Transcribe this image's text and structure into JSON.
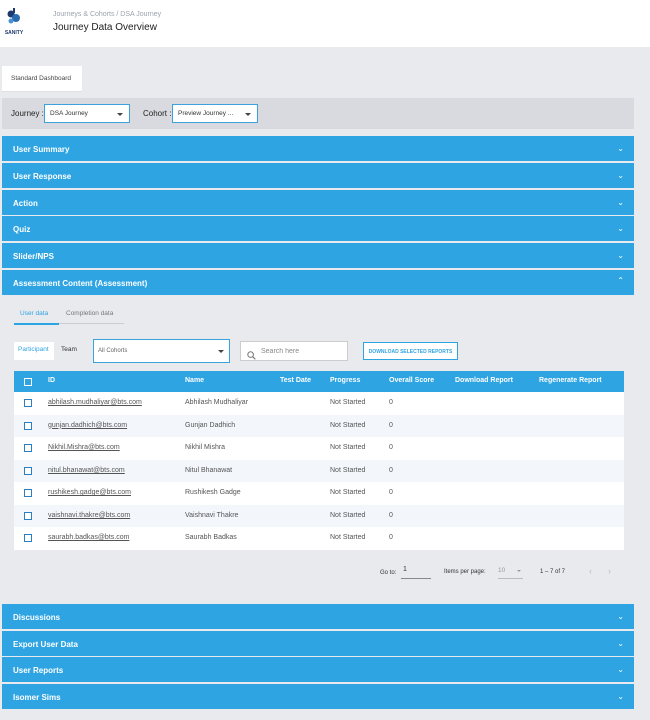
{
  "header": {
    "logo_text": "SANITY",
    "breadcrumb": "Journeys & Cohorts / DSA Journey",
    "title": "Journey Data Overview"
  },
  "dashboard_tab": "Standard Dashboard",
  "filters": {
    "journey_label": "Journey :",
    "journey_value": "DSA Journey",
    "cohort_label": "Cohort :",
    "cohort_value": "Preview Journey ..."
  },
  "sections_top": [
    {
      "label": "User Summary",
      "expanded": false
    },
    {
      "label": "User Response",
      "expanded": false
    },
    {
      "label": "Action",
      "expanded": false
    },
    {
      "label": "Quiz",
      "expanded": false
    },
    {
      "label": "Slider/NPS",
      "expanded": false
    },
    {
      "label": "Assessment Content (Assessment)",
      "expanded": true
    }
  ],
  "sections_bottom": [
    {
      "label": "Discussions"
    },
    {
      "label": "Export User Data"
    },
    {
      "label": "User Reports"
    },
    {
      "label": "Isomer Sims"
    }
  ],
  "assessment": {
    "subtabs": [
      "User data",
      "Completion data"
    ],
    "active_subtab": "User data",
    "toggle": [
      "Participant",
      "Team"
    ],
    "active_toggle": "Participant",
    "cohort_filter": "All Cohorts",
    "search_placeholder": "Search here",
    "download_button": "DOWNLOAD SELECTED REPORTS",
    "columns": [
      "ID",
      "Name",
      "Test Date",
      "Progress",
      "Overall Score",
      "Download Report",
      "Regenerate Report"
    ],
    "rows": [
      {
        "id": "abhilash.mudhaliyar@bts.com",
        "name": "Abhilash Mudhaliyar",
        "test_date": "",
        "progress": "Not Started",
        "score": "0"
      },
      {
        "id": "gunjan.dadhich@bts.com",
        "name": "Gunjan Dadhich",
        "test_date": "",
        "progress": "Not Started",
        "score": "0"
      },
      {
        "id": "Nikhil.Mishra@bts.com",
        "name": "Nikhil Mishra",
        "test_date": "",
        "progress": "Not Started",
        "score": "0"
      },
      {
        "id": "nitul.bhanawat@bts.com",
        "name": "Nitul Bhanawat",
        "test_date": "",
        "progress": "Not Started",
        "score": "0"
      },
      {
        "id": "rushikesh.gadge@bts.com",
        "name": "Rushikesh Gadge",
        "test_date": "",
        "progress": "Not Started",
        "score": "0"
      },
      {
        "id": "vaishnavi.thakre@bts.com",
        "name": "Vaishnavi Thakre",
        "test_date": "",
        "progress": "Not Started",
        "score": "0"
      },
      {
        "id": "saurabh.badkas@bts.com",
        "name": "Saurabh Badkas",
        "test_date": "",
        "progress": "Not Started",
        "score": "0"
      }
    ],
    "pagination": {
      "goto_label": "Go to:",
      "goto_value": "1",
      "items_per_page_label": "Items per page:",
      "items_per_page_value": "10",
      "range": "1 – 7 of 7"
    }
  },
  "colors": {
    "accent": "#2ea4e3",
    "background": "#e9eaee"
  }
}
